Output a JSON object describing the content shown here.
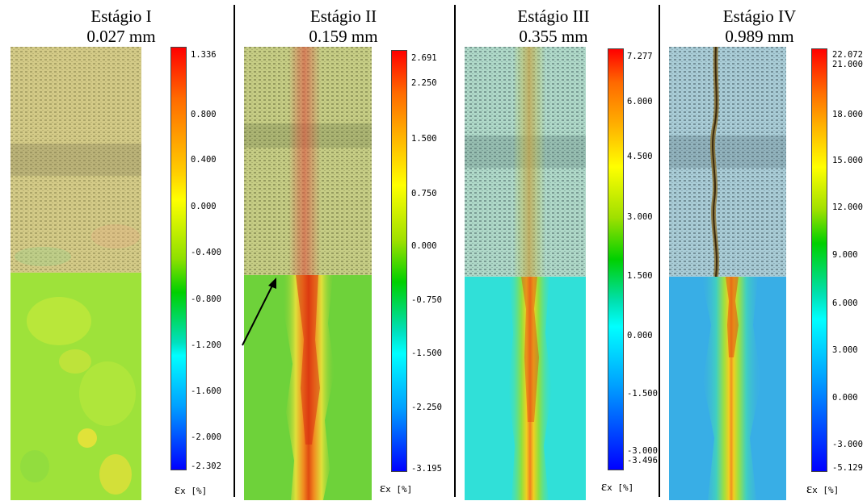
{
  "stages": [
    {
      "name": "Estágio I",
      "opening": "0.027 mm",
      "colorbar_ticks": [
        "1.336",
        "0.800",
        "0.400",
        "0.000",
        "-0.400",
        "-0.800",
        "-1.200",
        "-1.600",
        "-2.000",
        "-2.302"
      ],
      "unit": "εx [%]"
    },
    {
      "name": "Estágio II",
      "opening": "0.159 mm",
      "colorbar_ticks": [
        "2.691",
        "2.250",
        "1.500",
        "0.750",
        "0.000",
        "-0.750",
        "-1.500",
        "-2.250",
        "-3.195"
      ],
      "unit": "εx [%]"
    },
    {
      "name": "Estágio III",
      "opening": "0.355 mm",
      "colorbar_ticks": [
        "7.277",
        "6.000",
        "4.500",
        "3.000",
        "1.500",
        "0.000",
        "-1.500",
        "-3.000",
        "-3.496"
      ],
      "unit": "εx [%]"
    },
    {
      "name": "Estágio IV",
      "opening": "0.989 mm",
      "colorbar_ticks": [
        "22.072",
        "21.000",
        "18.000",
        "15.000",
        "12.000",
        "9.000",
        "6.000",
        "3.000",
        "0.000",
        "-3.000",
        "-5.129"
      ],
      "unit": "εx [%]"
    }
  ],
  "unit_symbol": "ε",
  "unit_sub": "x [%]",
  "colors": {
    "jet_top": "#ff0000",
    "jet_bottom": "#0000ff",
    "arrow": "#000000"
  },
  "icons": [
    "arrow-pointer-icon"
  ]
}
